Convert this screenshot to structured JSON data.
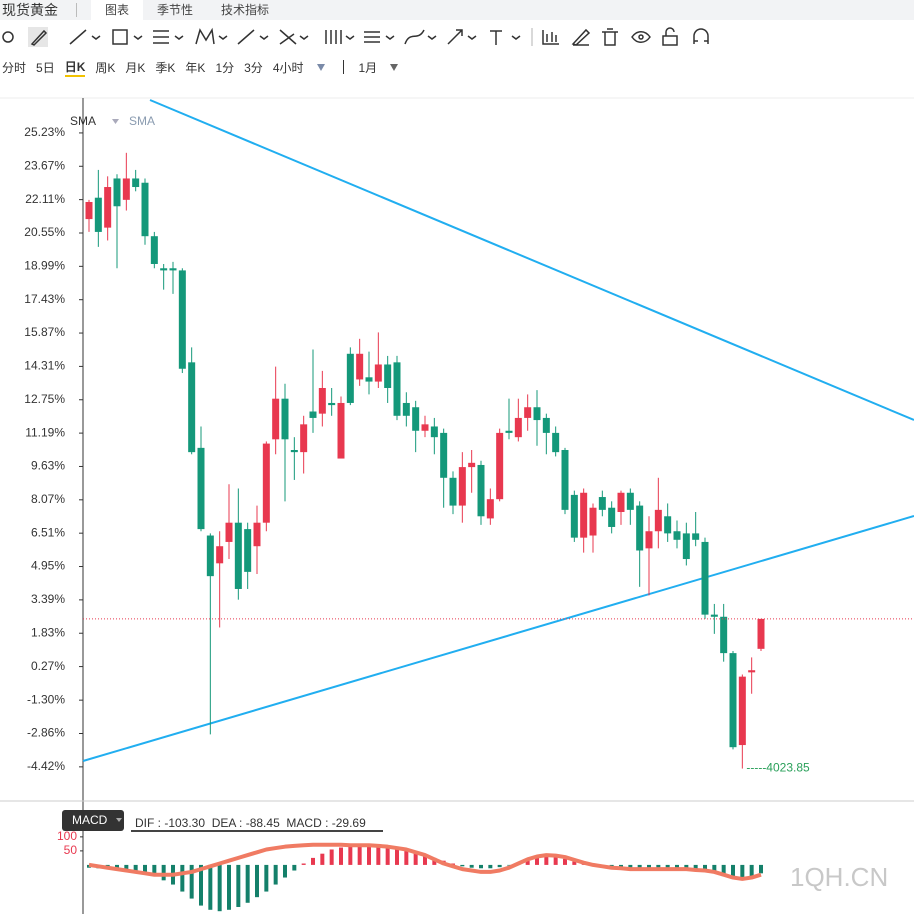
{
  "header": {
    "title": "现货黄金",
    "tabs": [
      "图表",
      "季节性",
      "技术指标"
    ]
  },
  "periods": [
    "分时",
    "5日",
    "日K",
    "周K",
    "月K",
    "季K",
    "年K",
    "1分",
    "3分",
    "4小时"
  ],
  "period_extra": "1月",
  "watermark": "1QH.CN",
  "chart_data": [
    {
      "type": "candlestick",
      "indicator_labels": [
        "SMA",
        "SMA"
      ],
      "up_color": "#e8384f",
      "down_color": "#14987a",
      "annotation": "-----4023.85",
      "ylim": [
        -5.97,
        26.77
      ],
      "yticks": [
        {
          "value": 25.23,
          "label": "25.23%"
        },
        {
          "value": 23.67,
          "label": "23.67%"
        },
        {
          "value": 22.11,
          "label": "22.11%"
        },
        {
          "value": 20.55,
          "label": "20.55%"
        },
        {
          "value": 18.99,
          "label": "18.99%"
        },
        {
          "value": 17.43,
          "label": "17.43%"
        },
        {
          "value": 15.87,
          "label": "15.87%"
        },
        {
          "value": 14.31,
          "label": "14.31%"
        },
        {
          "value": 12.75,
          "label": "12.75%"
        },
        {
          "value": 11.19,
          "label": "11.19%"
        },
        {
          "value": 9.63,
          "label": "9.63%"
        },
        {
          "value": 8.07,
          "label": "8.07%"
        },
        {
          "value": 6.51,
          "label": "6.51%"
        },
        {
          "value": 4.95,
          "label": "4.95%"
        },
        {
          "value": 3.39,
          "label": "3.39%"
        },
        {
          "value": 1.83,
          "label": "1.83%"
        },
        {
          "value": 0.27,
          "label": "0.27%"
        },
        {
          "value": -1.3,
          "label": "-1.30%"
        },
        {
          "value": -2.86,
          "label": "-2.86%"
        },
        {
          "value": -4.42,
          "label": "-4.42%"
        }
      ],
      "ohlc": [
        [
          21.2,
          22.1,
          20.6,
          22.0
        ],
        [
          22.2,
          23.5,
          19.9,
          20.6
        ],
        [
          20.8,
          23.2,
          20.2,
          22.7
        ],
        [
          23.1,
          23.3,
          18.9,
          21.8
        ],
        [
          22.1,
          24.3,
          21.6,
          23.1
        ],
        [
          23.1,
          23.5,
          22.5,
          22.7
        ],
        [
          22.9,
          23.1,
          20.0,
          20.4
        ],
        [
          20.4,
          20.6,
          18.9,
          19.1
        ],
        [
          18.9,
          19.1,
          17.9,
          18.8
        ],
        [
          18.9,
          19.2,
          17.7,
          18.8
        ],
        [
          18.8,
          18.9,
          14.0,
          14.2
        ],
        [
          14.5,
          15.2,
          10.2,
          10.3
        ],
        [
          10.5,
          11.5,
          6.6,
          6.7
        ],
        [
          6.4,
          6.5,
          -2.9,
          4.5
        ],
        [
          5.1,
          6.6,
          2.1,
          5.9
        ],
        [
          6.1,
          8.8,
          5.3,
          7.0
        ],
        [
          7.0,
          8.6,
          3.4,
          3.9
        ],
        [
          6.7,
          7.0,
          3.9,
          4.7
        ],
        [
          5.9,
          7.8,
          4.6,
          7.0
        ],
        [
          7.0,
          10.8,
          6.6,
          10.7
        ],
        [
          10.9,
          14.3,
          10.2,
          12.8
        ],
        [
          12.8,
          13.5,
          8.0,
          10.9
        ],
        [
          10.4,
          11.0,
          9.0,
          10.3
        ],
        [
          10.3,
          12.0,
          9.3,
          11.6
        ],
        [
          12.2,
          15.1,
          11.2,
          11.9
        ],
        [
          12.1,
          14.1,
          11.5,
          13.3
        ],
        [
          12.6,
          13.3,
          12.0,
          12.5
        ],
        [
          10.0,
          12.9,
          10.0,
          12.6
        ],
        [
          14.9,
          15.2,
          12.5,
          12.6
        ],
        [
          13.7,
          15.6,
          13.4,
          14.9
        ],
        [
          13.8,
          15.0,
          13.0,
          13.6
        ],
        [
          13.6,
          15.9,
          13.3,
          14.4
        ],
        [
          14.4,
          14.8,
          12.6,
          13.3
        ],
        [
          14.5,
          14.8,
          11.8,
          12.0
        ],
        [
          12.6,
          13.1,
          11.5,
          12.0
        ],
        [
          12.4,
          12.7,
          10.3,
          11.3
        ],
        [
          11.3,
          12.0,
          11.0,
          11.6
        ],
        [
          11.5,
          11.9,
          10.2,
          11.0
        ],
        [
          11.2,
          11.4,
          7.7,
          9.1
        ],
        [
          9.1,
          9.4,
          7.4,
          7.8
        ],
        [
          7.8,
          10.3,
          7.0,
          9.6
        ],
        [
          9.6,
          10.4,
          8.4,
          9.8
        ],
        [
          9.7,
          9.9,
          6.9,
          7.3
        ],
        [
          7.2,
          8.6,
          6.9,
          8.1
        ],
        [
          8.1,
          11.4,
          8.0,
          11.2
        ],
        [
          11.3,
          12.8,
          10.9,
          11.2
        ],
        [
          11.0,
          12.8,
          10.8,
          11.9
        ],
        [
          11.9,
          13.0,
          11.3,
          12.4
        ],
        [
          12.4,
          13.2,
          10.6,
          11.8
        ],
        [
          11.9,
          12.1,
          10.2,
          11.2
        ],
        [
          11.2,
          11.5,
          10.1,
          10.3
        ],
        [
          10.4,
          10.5,
          7.4,
          7.6
        ],
        [
          8.3,
          8.5,
          6.1,
          6.3
        ],
        [
          6.3,
          8.6,
          5.6,
          8.4
        ],
        [
          6.4,
          7.9,
          5.6,
          7.7
        ],
        [
          8.2,
          8.5,
          7.3,
          7.6
        ],
        [
          7.7,
          8.0,
          6.5,
          6.8
        ],
        [
          7.5,
          8.5,
          6.9,
          8.4
        ],
        [
          8.4,
          8.6,
          6.9,
          7.6
        ],
        [
          7.8,
          8.0,
          4.0,
          5.7
        ],
        [
          5.8,
          7.3,
          3.6,
          6.6
        ],
        [
          6.6,
          9.1,
          5.8,
          7.6
        ],
        [
          7.3,
          7.9,
          6.1,
          6.5
        ],
        [
          6.6,
          7.1,
          5.8,
          6.2
        ],
        [
          6.5,
          7.0,
          5.0,
          5.3
        ],
        [
          6.5,
          7.5,
          5.9,
          6.2
        ],
        [
          6.1,
          6.3,
          2.5,
          2.7
        ],
        [
          2.7,
          3.2,
          1.8,
          2.6
        ],
        [
          2.6,
          3.2,
          0.5,
          0.9
        ],
        [
          0.9,
          1.0,
          -3.6,
          -3.5
        ],
        [
          -3.4,
          -0.1,
          -4.5,
          -0.2
        ],
        [
          0.0,
          0.7,
          -1.0,
          0.1
        ],
        [
          1.1,
          2.5,
          1.0,
          2.5
        ]
      ]
    },
    {
      "type": "macd",
      "label": "MACD",
      "legend": "DIF : -103.30  DEA : -88.45  MACD : -29.69",
      "ylim": [
        -175,
        210
      ],
      "yticks": [
        100,
        50
      ],
      "up_color": "#e8384f",
      "down_color": "#14806a",
      "histogram": [
        -10,
        -12,
        -15,
        -18,
        -20,
        -25,
        -30,
        -40,
        -55,
        -70,
        -95,
        -120,
        -145,
        -160,
        -165,
        -160,
        -150,
        -135,
        -115,
        -95,
        -70,
        -45,
        -20,
        5,
        25,
        40,
        55,
        62,
        68,
        70,
        70,
        68,
        65,
        60,
        55,
        45,
        35,
        25,
        15,
        5,
        -5,
        -10,
        -12,
        -12,
        -8,
        -2,
        5,
        15,
        25,
        30,
        28,
        22,
        12,
        2,
        -5,
        -10,
        -12,
        -12,
        -10,
        -10,
        -12,
        -12,
        -10,
        -10,
        -12,
        -15,
        -20,
        -30,
        -40,
        -50,
        -50,
        -40,
        -30
      ],
      "line": {
        "color": "#f07b63",
        "values": [
          0,
          -5,
          -10,
          -15,
          -20,
          -25,
          -30,
          -35,
          -35,
          -35,
          -30,
          -25,
          -15,
          -5,
          5,
          15,
          25,
          35,
          45,
          55,
          60,
          65,
          68,
          70,
          72,
          72,
          72,
          72,
          70,
          70,
          70,
          68,
          65,
          60,
          55,
          45,
          35,
          20,
          5,
          -5,
          -15,
          -20,
          -25,
          -25,
          -20,
          -10,
          5,
          20,
          30,
          35,
          33,
          28,
          18,
          8,
          0,
          -5,
          -10,
          -12,
          -15,
          -15,
          -15,
          -15,
          -15,
          -15,
          -15,
          -18,
          -20,
          -25,
          -35,
          -45,
          -50,
          -45,
          -35
        ]
      }
    }
  ]
}
